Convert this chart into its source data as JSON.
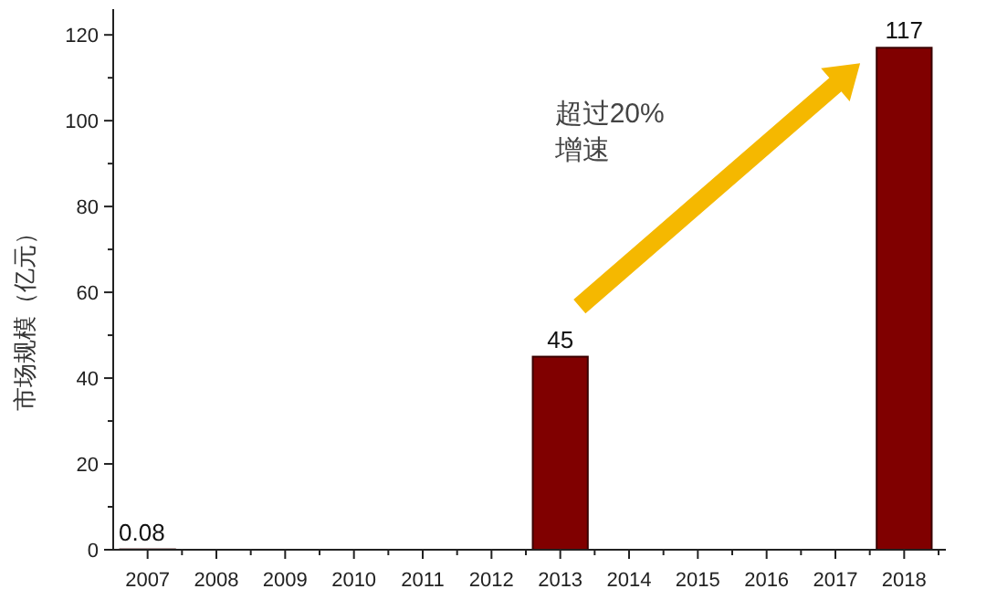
{
  "chart_data": {
    "type": "bar",
    "ylabel": "市场规模（亿元）",
    "categories": [
      "2007",
      "2008",
      "2009",
      "2010",
      "2011",
      "2012",
      "2013",
      "2014",
      "2015",
      "2016",
      "2017",
      "2018"
    ],
    "values": [
      0.08,
      null,
      null,
      null,
      null,
      null,
      45,
      null,
      null,
      null,
      null,
      117
    ],
    "color": "#800000",
    "ylim": [
      0,
      126
    ],
    "yticks": [
      0,
      20,
      40,
      60,
      80,
      100,
      120
    ],
    "data_labels": true,
    "grid": false,
    "annotations": [
      "超过20%\n增速"
    ]
  }
}
